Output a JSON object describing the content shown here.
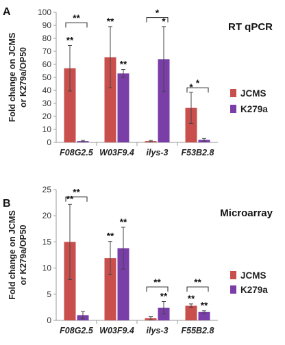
{
  "colors": {
    "JCMS": "#C84F4C",
    "K279a": "#7A3EA8",
    "axis": "#999999",
    "err": "#444444",
    "bracket": "#222222"
  },
  "chart_data": [
    {
      "panel_label": "A",
      "title": "RT qPCR",
      "type": "bar",
      "ylabel": [
        "Fold change on JCMS",
        "or K279a/OP50"
      ],
      "ylim": [
        0,
        100
      ],
      "yticks": [
        0,
        10,
        20,
        30,
        40,
        50,
        60,
        70,
        80,
        90,
        100
      ],
      "categories": [
        "F08G2.5",
        "W03F9.4",
        "ilys-3",
        "F53B2.8"
      ],
      "legend": "right",
      "series": [
        {
          "name": "JCMS",
          "color": "#C84F4C",
          "values": [
            57,
            65.5,
            1,
            26.5
          ],
          "err": [
            17.5,
            23.5,
            0.5,
            12
          ],
          "sig": [
            "**",
            "**",
            "",
            "*"
          ]
        },
        {
          "name": "K279a",
          "color": "#7A3EA8",
          "values": [
            1,
            53,
            64,
            2
          ],
          "err": [
            0.5,
            3,
            25,
            1
          ],
          "sig": [
            "",
            "**",
            "*",
            ""
          ]
        }
      ],
      "brackets": [
        {
          "category": 0,
          "y": 92,
          "label": "**"
        },
        {
          "category": 2,
          "y": 96,
          "label": "*"
        },
        {
          "category": 3,
          "y": 42,
          "label": "*"
        }
      ]
    },
    {
      "panel_label": "B",
      "title": "Microarray",
      "type": "bar",
      "ylabel": [
        "Fold change on JCMS",
        "or K279a/OP50"
      ],
      "ylim": [
        0,
        25
      ],
      "yticks": [
        0,
        5,
        10,
        15,
        20,
        25
      ],
      "categories": [
        "F08G2.5",
        "W03F9.4",
        "ilys-3",
        "F55B2.8"
      ],
      "legend": "right",
      "series": [
        {
          "name": "JCMS",
          "color": "#C84F4C",
          "values": [
            15,
            11.9,
            0.4,
            2.8
          ],
          "err": [
            7.2,
            3.2,
            0.3,
            0.35
          ],
          "sig": [
            "**",
            "**",
            "",
            "**"
          ]
        },
        {
          "name": "K279a",
          "color": "#7A3EA8",
          "values": [
            1,
            13.8,
            2.4,
            1.6
          ],
          "err": [
            0.7,
            4,
            1.2,
            0.25
          ],
          "sig": [
            "",
            "**",
            "**",
            "**"
          ]
        }
      ],
      "brackets": [
        {
          "category": 0,
          "y": 23.6,
          "label": "**"
        },
        {
          "category": 2,
          "y": 6.4,
          "label": "**"
        },
        {
          "category": 3,
          "y": 6.4,
          "label": "**"
        }
      ]
    }
  ]
}
